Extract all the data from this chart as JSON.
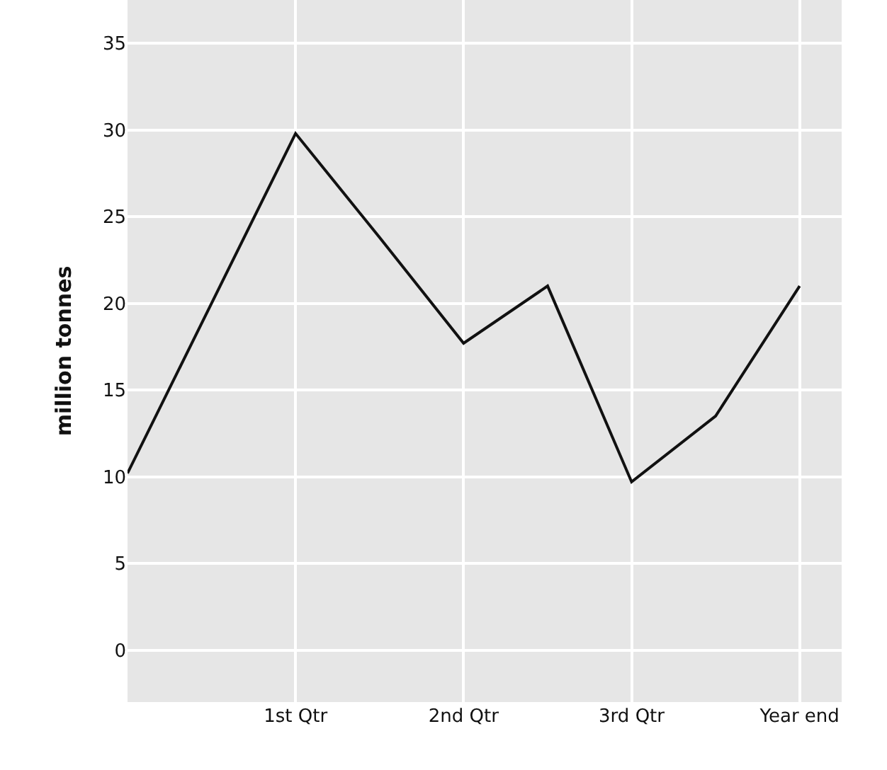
{
  "chart_data": {
    "type": "line",
    "ylabel": "million tonnes",
    "categories": [
      null,
      null,
      "1st Qtr",
      null,
      "2nd Qtr",
      null,
      "3rd Qtr",
      null,
      "Year end"
    ],
    "series": [
      {
        "color": "#111111",
        "values": [
          10.2,
          20.0,
          29.8,
          23.8,
          17.7,
          21.0,
          9.7,
          13.5,
          21.0
        ]
      }
    ],
    "ylim": [
      -3,
      37.5
    ],
    "yticks": [
      0,
      5,
      10,
      15,
      20,
      25,
      30,
      35
    ],
    "grid": true,
    "legend": false,
    "marker": "none",
    "line_style": "solid"
  }
}
